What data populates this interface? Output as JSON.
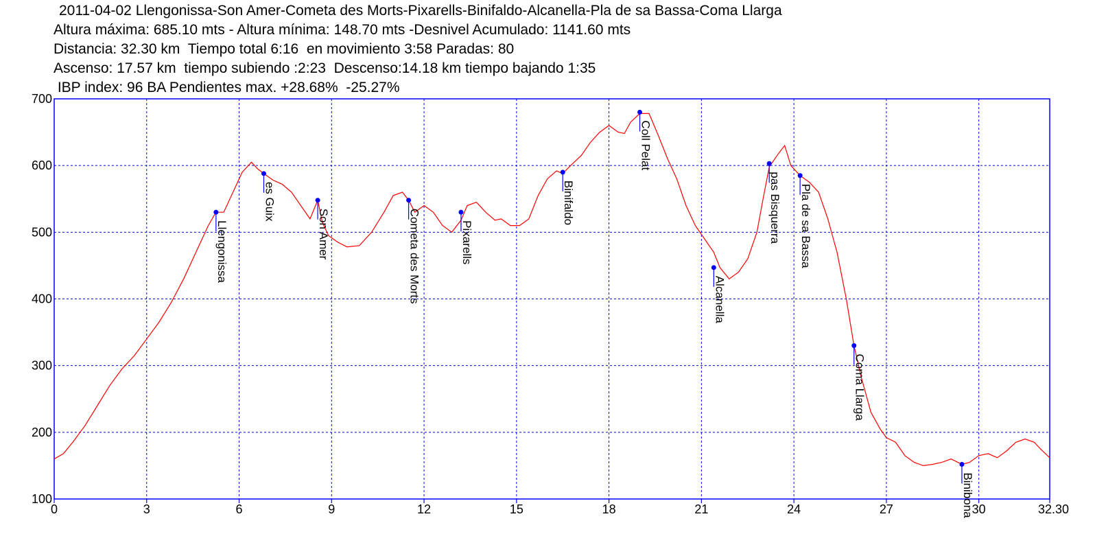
{
  "header": {
    "line1": "2011-04-02 Llengonissa-Son Amer-Cometa des Morts-Pixarells-Binifaldo-Alcanella-Pla de sa Bassa-Coma Llarga",
    "line2": "Altura máxima: 685.10 mts - Altura mínima: 148.70 mts -Desnivel Acumulado: 1141.60 mts",
    "line3": "Distancia: 32.30 km  Tiempo total 6:16  en movimiento 3:58 Paradas: 80",
    "line4": "Ascenso: 17.57 km  tiempo subiendo :2:23  Descenso:14.18 km tiempo bajando 1:35",
    "line5": " IBP index: 96 BA Pendientes max. +28.68%  -25.27%"
  },
  "chart_data": {
    "type": "line",
    "x_ticks": [
      "0",
      "3",
      "6",
      "9",
      "12",
      "15",
      "18",
      "21",
      "24",
      "27",
      "30",
      "32.30"
    ],
    "x_tick_values": [
      0,
      3,
      6,
      9,
      12,
      15,
      18,
      21,
      24,
      27,
      30,
      32.3
    ],
    "y_ticks": [
      "100",
      "200",
      "300",
      "400",
      "500",
      "600",
      "700"
    ],
    "y_tick_values": [
      100,
      200,
      300,
      400,
      500,
      600,
      700
    ],
    "xlim": [
      0,
      32.3
    ],
    "ylim": [
      100,
      700
    ],
    "grid": true,
    "colors": {
      "profile": "#ff0000",
      "waypoint": "#0000ff",
      "grid": "#0000ff",
      "frame": "#0000ff"
    },
    "series": [
      {
        "x": [
          0,
          0.3,
          0.6,
          1.0,
          1.4,
          1.8,
          2.2,
          2.6,
          3.0,
          3.4,
          3.8,
          4.2,
          4.6,
          5.0,
          5.25,
          5.5,
          5.8,
          6.1,
          6.4,
          6.6,
          6.8,
          7.1,
          7.4,
          7.7,
          8.0,
          8.3,
          8.55,
          8.7,
          8.9,
          9.2,
          9.5,
          9.9,
          10.3,
          10.7,
          11.0,
          11.3,
          11.5,
          11.7,
          12.0,
          12.3,
          12.6,
          12.9,
          13.2,
          13.4,
          13.7,
          14.0,
          14.3,
          14.5,
          14.8,
          15.1,
          15.4,
          15.7,
          16.0,
          16.3,
          16.5,
          16.8,
          17.1,
          17.4,
          17.7,
          18.0,
          18.3,
          18.5,
          18.7,
          19.0,
          19.3,
          19.6,
          19.9,
          20.2,
          20.5,
          20.8,
          21.1,
          21.4,
          21.6,
          21.9,
          22.2,
          22.5,
          22.8,
          23.0,
          23.2,
          23.5,
          23.7,
          23.9,
          24.2,
          24.5,
          24.8,
          25.1,
          25.4,
          25.7,
          25.95,
          26.2,
          26.5,
          26.8,
          27.0,
          27.3,
          27.6,
          27.9,
          28.2,
          28.5,
          28.8,
          29.1,
          29.45,
          29.7,
          30.0,
          30.3,
          30.6,
          30.9,
          31.2,
          31.5,
          31.8,
          32.0,
          32.3
        ],
        "y": [
          160,
          168,
          185,
          210,
          240,
          270,
          295,
          315,
          340,
          365,
          395,
          430,
          470,
          510,
          530,
          530,
          560,
          590,
          605,
          595,
          588,
          578,
          572,
          560,
          540,
          520,
          548,
          515,
          495,
          485,
          478,
          480,
          500,
          530,
          555,
          560,
          548,
          530,
          540,
          530,
          510,
          500,
          518,
          540,
          545,
          530,
          518,
          520,
          510,
          510,
          520,
          555,
          580,
          592,
          588,
          602,
          615,
          635,
          650,
          660,
          650,
          648,
          665,
          678,
          678,
          645,
          610,
          580,
          540,
          510,
          490,
          470,
          447,
          430,
          440,
          460,
          500,
          550,
          598,
          618,
          630,
          600,
          585,
          575,
          560,
          520,
          470,
          400,
          330,
          280,
          230,
          205,
          192,
          185,
          165,
          155,
          150,
          152,
          155,
          160,
          152,
          155,
          165,
          168,
          162,
          172,
          185,
          190,
          185,
          175,
          162
        ]
      }
    ],
    "waypoints": [
      {
        "name": "Llengonissa",
        "x": 5.25,
        "y": 530
      },
      {
        "name": "es Guix",
        "x": 6.8,
        "y": 588
      },
      {
        "name": "Son Amer",
        "x": 8.55,
        "y": 548
      },
      {
        "name": "Cometa des Morts",
        "x": 11.5,
        "y": 548
      },
      {
        "name": "Pixarells",
        "x": 13.2,
        "y": 530
      },
      {
        "name": "Binifaldo",
        "x": 16.5,
        "y": 590
      },
      {
        "name": "Coll Pelat",
        "x": 19.0,
        "y": 680
      },
      {
        "name": "Alcanella",
        "x": 21.4,
        "y": 447
      },
      {
        "name": "pas Bisquerra",
        "x": 23.2,
        "y": 603
      },
      {
        "name": "Pla de sa Bassa",
        "x": 24.2,
        "y": 585
      },
      {
        "name": "Coma Llarga",
        "x": 25.95,
        "y": 330
      },
      {
        "name": "Binibona",
        "x": 29.45,
        "y": 152
      }
    ]
  }
}
